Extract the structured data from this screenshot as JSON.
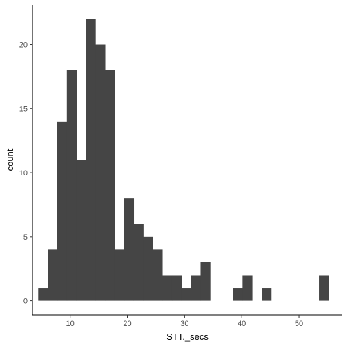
{
  "chart_data": {
    "type": "bar",
    "title": "",
    "xlabel": "STT._secs",
    "ylabel": "count",
    "xlim": [
      3.4,
      57.6
    ],
    "ylim": [
      -1.1,
      23.1
    ],
    "x_ticks": [
      10,
      20,
      30,
      40,
      50
    ],
    "y_ticks": [
      0,
      5,
      10,
      15,
      20
    ],
    "bin_width": 1.67,
    "bins": [
      {
        "x0": 4.4,
        "x1": 6.07,
        "count": 1
      },
      {
        "x0": 6.07,
        "x1": 7.74,
        "count": 4
      },
      {
        "x0": 7.74,
        "x1": 9.41,
        "count": 14
      },
      {
        "x0": 9.41,
        "x1": 11.08,
        "count": 18
      },
      {
        "x0": 11.08,
        "x1": 12.75,
        "count": 11
      },
      {
        "x0": 12.75,
        "x1": 14.42,
        "count": 22
      },
      {
        "x0": 14.42,
        "x1": 16.09,
        "count": 20
      },
      {
        "x0": 16.09,
        "x1": 17.76,
        "count": 18
      },
      {
        "x0": 17.76,
        "x1": 19.43,
        "count": 4
      },
      {
        "x0": 19.43,
        "x1": 21.1,
        "count": 8
      },
      {
        "x0": 21.1,
        "x1": 22.77,
        "count": 6
      },
      {
        "x0": 22.77,
        "x1": 24.44,
        "count": 5
      },
      {
        "x0": 24.44,
        "x1": 26.11,
        "count": 4
      },
      {
        "x0": 26.11,
        "x1": 27.78,
        "count": 2
      },
      {
        "x0": 27.78,
        "x1": 29.45,
        "count": 2
      },
      {
        "x0": 29.45,
        "x1": 31.12,
        "count": 1
      },
      {
        "x0": 31.12,
        "x1": 32.79,
        "count": 2
      },
      {
        "x0": 32.79,
        "x1": 34.46,
        "count": 3
      },
      {
        "x0": 38.47,
        "x1": 40.14,
        "count": 1
      },
      {
        "x0": 40.14,
        "x1": 41.81,
        "count": 2
      },
      {
        "x0": 43.48,
        "x1": 45.15,
        "count": 1
      },
      {
        "x0": 53.5,
        "x1": 55.17,
        "count": 2
      }
    ],
    "bar_color": "#454545",
    "axis_color": "#000000",
    "grid": false,
    "legend": "none"
  }
}
